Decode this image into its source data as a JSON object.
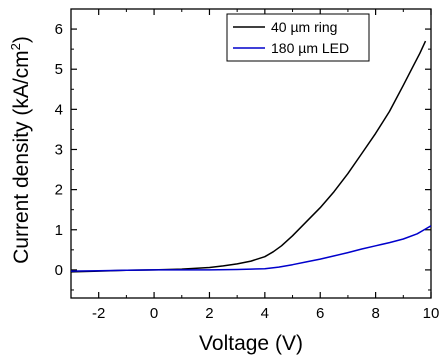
{
  "chart_data": {
    "type": "line",
    "xlabel": "Voltage (V)",
    "ylabel": "Current density (kA/cm",
    "ylabel_superscript": "2",
    "ylabel_suffix": ")",
    "xlim": [
      -3,
      10
    ],
    "ylim": [
      -0.7,
      6.5
    ],
    "xticks": [
      -2,
      0,
      2,
      4,
      6,
      8,
      10
    ],
    "yticks": [
      0,
      1,
      2,
      3,
      4,
      5,
      6
    ],
    "grid": false,
    "legend_position": "top-right",
    "series": [
      {
        "name": "40 µm ring",
        "color": "#000000",
        "x": [
          -3,
          -2,
          -1,
          0,
          1,
          2,
          2.5,
          3,
          3.5,
          4,
          4.3,
          4.6,
          5,
          5.5,
          6,
          6.5,
          7,
          7.5,
          8,
          8.5,
          9,
          9.3,
          9.6,
          9.8
        ],
        "y": [
          -0.05,
          -0.03,
          -0.01,
          0.0,
          0.02,
          0.06,
          0.1,
          0.15,
          0.22,
          0.33,
          0.45,
          0.6,
          0.85,
          1.2,
          1.55,
          1.95,
          2.4,
          2.9,
          3.4,
          3.95,
          4.6,
          5.0,
          5.4,
          5.7
        ]
      },
      {
        "name": "180 µm LED",
        "color": "#0000cc",
        "x": [
          -3,
          -2,
          -1,
          0,
          1,
          2,
          3,
          3.5,
          4,
          4.5,
          5,
          5.5,
          6,
          6.5,
          7,
          7.5,
          8,
          8.5,
          9,
          9.5,
          9.8,
          10
        ],
        "y": [
          -0.03,
          -0.02,
          -0.01,
          0.0,
          0.0,
          0.0,
          0.01,
          0.02,
          0.03,
          0.07,
          0.13,
          0.2,
          0.27,
          0.35,
          0.43,
          0.52,
          0.6,
          0.68,
          0.77,
          0.9,
          1.02,
          1.1
        ]
      }
    ]
  }
}
